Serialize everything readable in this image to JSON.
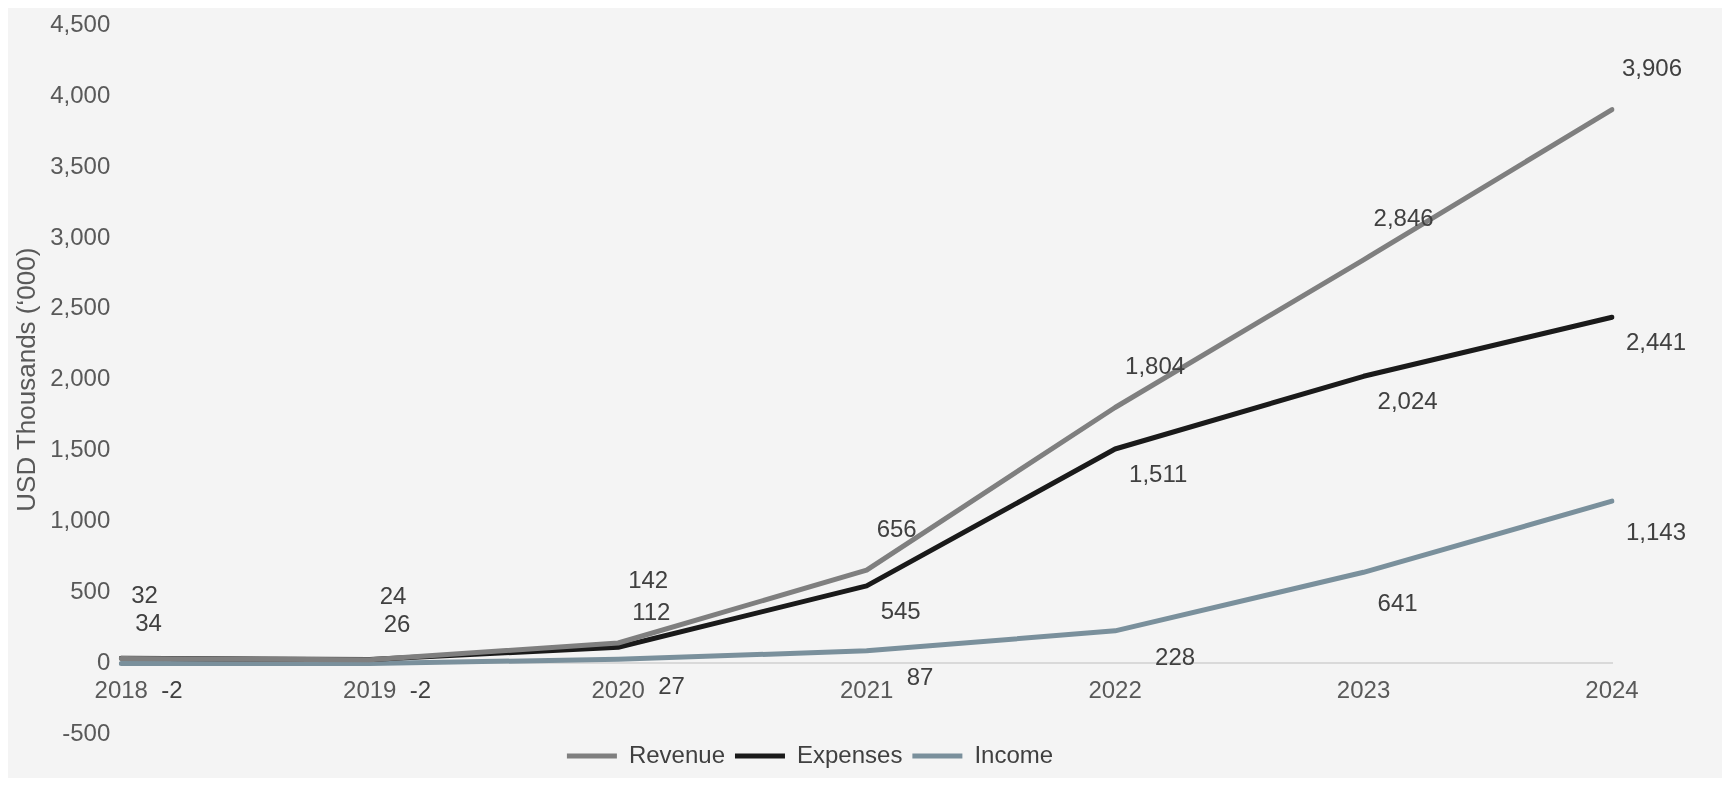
{
  "chart_data": {
    "type": "line",
    "ylabel": "USD Thousands (‘000)",
    "categories": [
      "2018",
      "2019",
      "2020",
      "2021",
      "2022",
      "2023",
      "2024"
    ],
    "series": [
      {
        "name": "Revenue",
        "color": "#7f7f7f",
        "values": [
          32,
          24,
          142,
          656,
          1804,
          2846,
          3906
        ],
        "value_labels": [
          "32",
          "24",
          "142",
          "656",
          "1,804",
          "2,846",
          "3,906"
        ]
      },
      {
        "name": "Expenses",
        "color": "#1a1a1a",
        "values": [
          34,
          26,
          112,
          545,
          1511,
          2024,
          2441
        ],
        "value_labels": [
          "34",
          "26",
          "112",
          "545",
          "1,511",
          "2,024",
          "2,441"
        ]
      },
      {
        "name": "Income",
        "color": "#7a909c",
        "values": [
          -2,
          -2,
          27,
          87,
          228,
          641,
          1143
        ],
        "value_labels": [
          "-2",
          "-2",
          "27",
          "87",
          "228",
          "641",
          "1,143"
        ]
      }
    ],
    "ylim": [
      -500,
      4500
    ],
    "yticks": [
      {
        "value": -500,
        "label": "-500"
      },
      {
        "value": 0,
        "label": "0"
      },
      {
        "value": 500,
        "label": "500"
      },
      {
        "value": 1000,
        "label": "1,000"
      },
      {
        "value": 1500,
        "label": "1,500"
      },
      {
        "value": 2000,
        "label": "2,000"
      },
      {
        "value": 2500,
        "label": "2,500"
      },
      {
        "value": 3000,
        "label": "3,000"
      },
      {
        "value": 3500,
        "label": "3,500"
      },
      {
        "value": 4000,
        "label": "4,000"
      },
      {
        "value": 4500,
        "label": "4,500"
      }
    ],
    "grid": false,
    "legend": "bottom",
    "marker": "none",
    "line_style": "solid"
  }
}
